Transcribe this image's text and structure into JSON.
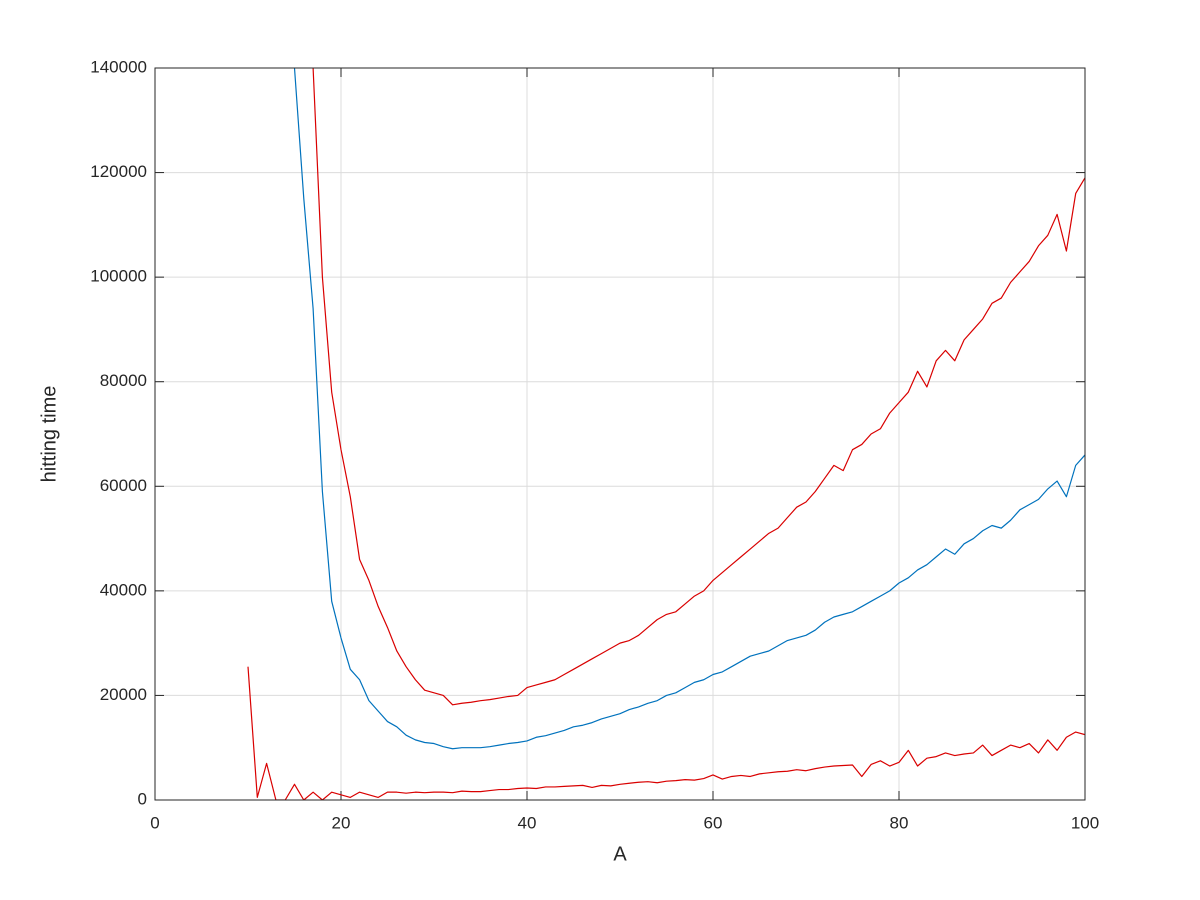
{
  "chart_data": {
    "type": "line",
    "xlabel": "A",
    "ylabel": "hitting time",
    "x": [
      10,
      11,
      12,
      13,
      14,
      15,
      16,
      17,
      18,
      19,
      20,
      21,
      22,
      23,
      24,
      25,
      26,
      27,
      28,
      29,
      30,
      31,
      32,
      33,
      34,
      35,
      36,
      37,
      38,
      39,
      40,
      41,
      42,
      43,
      44,
      45,
      46,
      47,
      48,
      49,
      50,
      51,
      52,
      53,
      54,
      55,
      56,
      57,
      58,
      59,
      60,
      61,
      62,
      63,
      64,
      65,
      66,
      67,
      68,
      69,
      70,
      71,
      72,
      73,
      74,
      75,
      76,
      77,
      78,
      79,
      80,
      81,
      82,
      83,
      84,
      85,
      86,
      87,
      88,
      89,
      90,
      91,
      92,
      93,
      94,
      95,
      96,
      97,
      98,
      99,
      100
    ],
    "series": [
      {
        "color": "#0072bd",
        "values": [
          null,
          null,
          null,
          null,
          null,
          140000,
          115000,
          94000,
          59000,
          38000,
          31000,
          25000,
          23000,
          19000,
          17000,
          15000,
          14000,
          12400,
          11500,
          11000,
          10800,
          10200,
          9800,
          10000,
          10000,
          10000,
          10200,
          10500,
          10800,
          11000,
          11300,
          12000,
          12300,
          12800,
          13300,
          14000,
          14300,
          14800,
          15500,
          16000,
          16500,
          17300,
          17800,
          18500,
          19000,
          20000,
          20500,
          21500,
          22500,
          23000,
          24000,
          24500,
          25500,
          26500,
          27500,
          28000,
          28500,
          29500,
          30500,
          31000,
          31500,
          32500,
          34000,
          35000,
          35500,
          36000,
          37000,
          38000,
          39000,
          40000,
          41500,
          42500,
          44000,
          45000,
          46500,
          48000,
          47000,
          49000,
          50000,
          51500,
          52500,
          52000,
          53500,
          55500,
          56500,
          57500,
          59500,
          61000,
          58000,
          64000,
          66000
        ]
      },
      {
        "color": "#d90000",
        "values": [
          null,
          null,
          null,
          null,
          null,
          null,
          null,
          140000,
          100000,
          78000,
          67000,
          58000,
          46000,
          42000,
          37000,
          33000,
          28500,
          25500,
          23000,
          21000,
          20500,
          20000,
          18200,
          18500,
          18700,
          19000,
          19200,
          19500,
          19800,
          20000,
          21500,
          22000,
          22500,
          23000,
          24000,
          25000,
          26000,
          27000,
          28000,
          29000,
          30000,
          30500,
          31500,
          33000,
          34500,
          35500,
          36000,
          37500,
          39000,
          40000,
          42000,
          43500,
          45000,
          46500,
          48000,
          49500,
          51000,
          52000,
          54000,
          56000,
          57000,
          59000,
          61500,
          64000,
          63000,
          67000,
          68000,
          70000,
          71000,
          74000,
          76000,
          78000,
          82000,
          79000,
          84000,
          86000,
          84000,
          88000,
          90000,
          92000,
          95000,
          96000,
          99000,
          101000,
          103000,
          106000,
          108000,
          112000,
          105000,
          116000,
          119000
        ]
      },
      {
        "color": "#d90000",
        "values": [
          25500,
          500,
          7000,
          0,
          0,
          3000,
          0,
          1500,
          0,
          1500,
          1000,
          500,
          1500,
          1000,
          500,
          1500,
          1500,
          1300,
          1500,
          1400,
          1500,
          1500,
          1400,
          1700,
          1600,
          1600,
          1800,
          2000,
          2000,
          2200,
          2300,
          2200,
          2500,
          2500,
          2600,
          2700,
          2800,
          2400,
          2800,
          2700,
          3000,
          3200,
          3400,
          3500,
          3300,
          3600,
          3700,
          3900,
          3800,
          4100,
          4800,
          4000,
          4500,
          4700,
          4500,
          5000,
          5200,
          5400,
          5500,
          5800,
          5600,
          6000,
          6300,
          6500,
          6600,
          6700,
          4500,
          6800,
          7500,
          6500,
          7200,
          9500,
          6500,
          8000,
          8300,
          9000,
          8500,
          8800,
          9000,
          10500,
          8500,
          9500,
          10500,
          10000,
          10800,
          9000,
          11500,
          9500,
          12000,
          13000,
          12500
        ]
      }
    ],
    "xlim": [
      0,
      100
    ],
    "xticks": [
      0,
      20,
      40,
      60,
      80,
      100
    ],
    "ylim": [
      0,
      140000
    ],
    "yticks": [
      0,
      20000,
      40000,
      60000,
      80000,
      100000,
      120000,
      140000
    ],
    "grid": true
  }
}
